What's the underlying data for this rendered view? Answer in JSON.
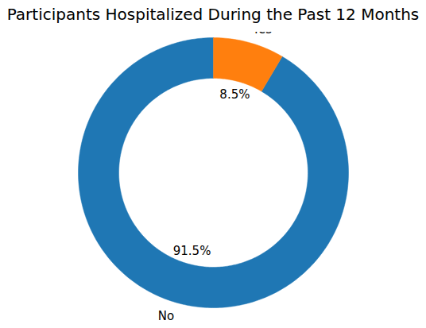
{
  "chart_data": {
    "type": "pie",
    "title": "Participants Hospitalized During the Past 12 Months",
    "categories": [
      "No",
      "Yes"
    ],
    "values": [
      91.5,
      8.5
    ],
    "colors": [
      "#1f77b4",
      "#ff7f0e"
    ],
    "data_labels": true,
    "value_labels": [
      "91.5%",
      "8.5%"
    ]
  }
}
